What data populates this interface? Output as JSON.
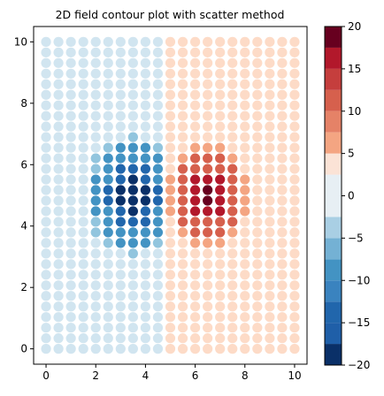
{
  "chart_data": {
    "type": "scatter",
    "title": "2D field contour plot with scatter method",
    "xlabel": "",
    "ylabel": "",
    "xlim": [
      -0.5,
      10.5
    ],
    "ylim": [
      -0.5,
      10.5
    ],
    "x_ticks": [
      0,
      2,
      4,
      6,
      8,
      10
    ],
    "y_ticks": [
      0,
      2,
      4,
      6,
      8,
      10
    ],
    "grid": false,
    "grid_points": {
      "x_start": 0,
      "x_end": 10,
      "x_count": 21,
      "y_start": 0,
      "y_end": 10,
      "y_count": 30
    },
    "field": {
      "description_of_values": "field value at each grid point",
      "negative_peak": {
        "x": 3.5,
        "y": 5.0,
        "value": -20
      },
      "positive_peak": {
        "x": 6.5,
        "y": 5.0,
        "value": 20
      },
      "radius": 2.0,
      "background_left": -0.5,
      "background_right": 0.5
    },
    "colorbar": {
      "levels": [
        -20,
        -17.5,
        -15,
        -12.5,
        -10,
        -7.5,
        -5,
        -2.5,
        0,
        2.5,
        5,
        7.5,
        10,
        12.5,
        15,
        17.5,
        20
      ],
      "bins": [
        -20,
        -15,
        -10,
        -5,
        0,
        5,
        10,
        15,
        20
      ],
      "boundaries": [
        -20,
        -17.5,
        -15,
        -12.5,
        -10,
        -7.5,
        -5,
        -2.5,
        2.5,
        5,
        7.5,
        10,
        12.5,
        15,
        17.5,
        20
      ],
      "tick_labels": [
        "20",
        "15",
        "10",
        "5",
        "0",
        "−5",
        "−10",
        "−15",
        "−20"
      ],
      "tick_values": [
        20,
        15,
        10,
        5,
        0,
        -5,
        -10,
        -15,
        -20
      ],
      "colors": [
        "#0a3068",
        "#2166ac",
        "#4393c3",
        "#92c5de",
        "#d1e5f0",
        "#fddbc7",
        "#f4a582",
        "#d6604d",
        "#b2182b",
        "#67001f"
      ]
    },
    "tick_labels_x": [
      "0",
      "2",
      "4",
      "6",
      "8",
      "10"
    ],
    "tick_labels_y": [
      "0",
      "2",
      "4",
      "6",
      "8",
      "10"
    ]
  }
}
